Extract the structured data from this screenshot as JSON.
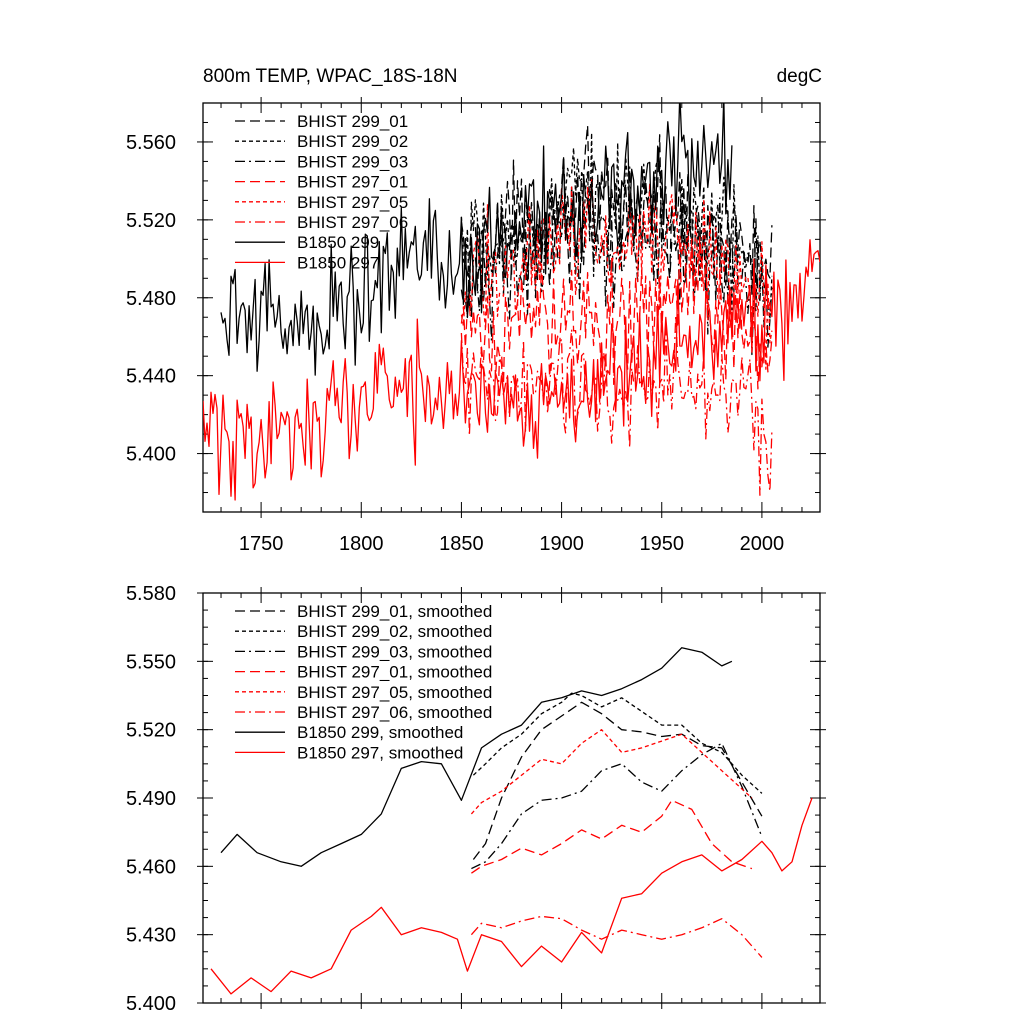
{
  "colors": {
    "black": "#000000",
    "red": "#ff0000"
  },
  "styles": {
    "solid": "",
    "dash": "10,5",
    "dot": "4,3",
    "dashdot": "10,4,2,4"
  },
  "top": {
    "title_left": "800m TEMP, WPAC_18S-18N",
    "title_right": "degC",
    "x_ticks": [
      "1750",
      "1800",
      "1850",
      "1900",
      "1950",
      "2000"
    ],
    "y_ticks": [
      "5.400",
      "5.440",
      "5.480",
      "5.520",
      "5.560"
    ]
  },
  "bottom": {
    "y_ticks": [
      "5.400",
      "5.430",
      "5.460",
      "5.490",
      "5.520",
      "5.550",
      "5.580"
    ]
  },
  "chart_data": [
    {
      "type": "line",
      "title": "800m TEMP, WPAC_18S-18N",
      "units": "degC",
      "xlim": [
        1721,
        2029
      ],
      "ylim": [
        5.37,
        5.58
      ],
      "x_tick_values": [
        1750,
        1800,
        1850,
        1900,
        1950,
        2000
      ],
      "y_tick_values": [
        5.4,
        5.44,
        5.48,
        5.52,
        5.56
      ],
      "noisy": true,
      "legend_position": "top-left",
      "series": [
        {
          "name": "BHIST 299_01",
          "color": "black",
          "style": "dash",
          "x": [
            1850,
            1870,
            1890,
            1910,
            1930,
            1950,
            1970,
            1990,
            2005
          ],
          "y": [
            5.5,
            5.512,
            5.522,
            5.53,
            5.526,
            5.522,
            5.515,
            5.505,
            5.495
          ]
        },
        {
          "name": "BHIST 299_02",
          "color": "black",
          "style": "dot",
          "x": [
            1850,
            1870,
            1890,
            1910,
            1930,
            1950,
            1970,
            1990,
            2005
          ],
          "y": [
            5.495,
            5.508,
            5.52,
            5.532,
            5.53,
            5.524,
            5.518,
            5.5,
            5.49
          ]
        },
        {
          "name": "BHIST 299_03",
          "color": "black",
          "style": "dashdot",
          "x": [
            1850,
            1870,
            1890,
            1910,
            1930,
            1950,
            1970,
            1990,
            2005
          ],
          "y": [
            5.48,
            5.49,
            5.5,
            5.512,
            5.508,
            5.51,
            5.505,
            5.49,
            5.475
          ]
        },
        {
          "name": "BHIST 297_01",
          "color": "red",
          "style": "dash",
          "x": [
            1850,
            1870,
            1890,
            1910,
            1930,
            1950,
            1970,
            1990,
            2005
          ],
          "y": [
            5.455,
            5.462,
            5.47,
            5.472,
            5.47,
            5.478,
            5.482,
            5.465,
            5.44
          ]
        },
        {
          "name": "BHIST 297_05",
          "color": "red",
          "style": "dot",
          "x": [
            1850,
            1870,
            1890,
            1910,
            1930,
            1950,
            1970,
            1990,
            2005
          ],
          "y": [
            5.482,
            5.495,
            5.505,
            5.512,
            5.508,
            5.51,
            5.508,
            5.49,
            5.465
          ]
        },
        {
          "name": "BHIST 297_06",
          "color": "red",
          "style": "dashdot",
          "x": [
            1850,
            1870,
            1890,
            1910,
            1930,
            1950,
            1970,
            1990,
            2005
          ],
          "y": [
            5.435,
            5.432,
            5.436,
            5.432,
            5.43,
            5.432,
            5.436,
            5.43,
            5.405
          ]
        },
        {
          "name": "B1850 299",
          "color": "black",
          "style": "solid",
          "x": [
            1730,
            1750,
            1770,
            1790,
            1810,
            1830,
            1850,
            1870,
            1890,
            1910,
            1930,
            1950,
            1965,
            1985
          ],
          "y": [
            5.468,
            5.472,
            5.465,
            5.475,
            5.49,
            5.505,
            5.5,
            5.51,
            5.525,
            5.53,
            5.538,
            5.545,
            5.55,
            5.548
          ]
        },
        {
          "name": "B1850 297",
          "color": "red",
          "style": "solid",
          "x": [
            1721,
            1740,
            1760,
            1780,
            1800,
            1820,
            1840,
            1860,
            1880,
            1900,
            1920,
            1940,
            1960,
            1980,
            2000,
            2010,
            2029
          ],
          "y": [
            5.415,
            5.405,
            5.413,
            5.418,
            5.428,
            5.436,
            5.43,
            5.43,
            5.428,
            5.43,
            5.44,
            5.45,
            5.462,
            5.458,
            5.47,
            5.48,
            5.5
          ]
        }
      ]
    },
    {
      "type": "line",
      "xlim": [
        1721,
        2029
      ],
      "ylim": [
        5.4,
        5.58
      ],
      "x_tick_values": [
        1750,
        1800,
        1850,
        1900,
        1950,
        2000
      ],
      "y_tick_values": [
        5.4,
        5.43,
        5.46,
        5.49,
        5.52,
        5.55,
        5.58
      ],
      "noisy": false,
      "legend_position": "top-left",
      "series": [
        {
          "name": "BHIST 299_01, smoothed",
          "color": "black",
          "style": "dash",
          "x": [
            1856,
            1862,
            1870,
            1880,
            1890,
            1900,
            1910,
            1920,
            1930,
            1940,
            1950,
            1960,
            1970,
            1980,
            1990,
            2000
          ],
          "y": [
            5.463,
            5.47,
            5.49,
            5.508,
            5.52,
            5.526,
            5.532,
            5.527,
            5.52,
            5.519,
            5.517,
            5.518,
            5.513,
            5.512,
            5.497,
            5.482
          ]
        },
        {
          "name": "BHIST 299_02, smoothed",
          "color": "black",
          "style": "dot",
          "x": [
            1856,
            1862,
            1870,
            1880,
            1890,
            1900,
            1905,
            1910,
            1920,
            1930,
            1940,
            1950,
            1960,
            1970,
            1980,
            1990,
            2000
          ],
          "y": [
            5.5,
            5.505,
            5.512,
            5.518,
            5.527,
            5.532,
            5.536,
            5.535,
            5.53,
            5.534,
            5.528,
            5.522,
            5.522,
            5.514,
            5.51,
            5.5,
            5.492
          ]
        },
        {
          "name": "BHIST 299_03, smoothed",
          "color": "black",
          "style": "dashdot",
          "x": [
            1855,
            1862,
            1870,
            1880,
            1890,
            1900,
            1910,
            1920,
            1930,
            1940,
            1950,
            1960,
            1970,
            1980,
            1990,
            2000
          ],
          "y": [
            5.459,
            5.462,
            5.47,
            5.483,
            5.489,
            5.49,
            5.493,
            5.502,
            5.505,
            5.497,
            5.493,
            5.502,
            5.509,
            5.514,
            5.495,
            5.473
          ]
        },
        {
          "name": "BHIST 297_01, smoothed",
          "color": "red",
          "style": "dash",
          "x": [
            1855,
            1860,
            1870,
            1880,
            1890,
            1900,
            1910,
            1920,
            1930,
            1940,
            1950,
            1955,
            1965,
            1975,
            1985,
            1995
          ],
          "y": [
            5.457,
            5.46,
            5.463,
            5.468,
            5.465,
            5.47,
            5.476,
            5.472,
            5.478,
            5.475,
            5.482,
            5.489,
            5.485,
            5.47,
            5.462,
            5.459
          ]
        },
        {
          "name": "BHIST 297_05, smoothed",
          "color": "red",
          "style": "dot",
          "x": [
            1855,
            1860,
            1870,
            1880,
            1890,
            1900,
            1910,
            1920,
            1930,
            1940,
            1950,
            1960,
            1970,
            1980,
            1995
          ],
          "y": [
            5.483,
            5.488,
            5.493,
            5.5,
            5.507,
            5.505,
            5.514,
            5.52,
            5.51,
            5.512,
            5.515,
            5.518,
            5.51,
            5.502,
            5.49
          ]
        },
        {
          "name": "BHIST 297_06, smoothed",
          "color": "red",
          "style": "dashdot",
          "x": [
            1855,
            1860,
            1870,
            1880,
            1890,
            1900,
            1910,
            1920,
            1930,
            1940,
            1950,
            1960,
            1970,
            1980,
            1990,
            2000
          ],
          "y": [
            5.43,
            5.435,
            5.433,
            5.436,
            5.438,
            5.437,
            5.432,
            5.428,
            5.432,
            5.43,
            5.428,
            5.43,
            5.433,
            5.437,
            5.43,
            5.42
          ]
        },
        {
          "name": "B1850 299, smoothed",
          "color": "black",
          "style": "solid",
          "x": [
            1730,
            1738,
            1748,
            1760,
            1770,
            1780,
            1790,
            1800,
            1810,
            1820,
            1830,
            1840,
            1850,
            1860,
            1870,
            1880,
            1890,
            1900,
            1910,
            1920,
            1930,
            1940,
            1950,
            1960,
            1970,
            1980,
            1985
          ],
          "y": [
            5.466,
            5.474,
            5.466,
            5.462,
            5.46,
            5.466,
            5.47,
            5.474,
            5.483,
            5.503,
            5.506,
            5.505,
            5.489,
            5.512,
            5.518,
            5.522,
            5.532,
            5.534,
            5.537,
            5.535,
            5.538,
            5.542,
            5.547,
            5.556,
            5.554,
            5.548,
            5.55
          ]
        },
        {
          "name": "B1850 297, smoothed",
          "color": "red",
          "style": "solid",
          "x": [
            1725,
            1735,
            1745,
            1755,
            1765,
            1775,
            1785,
            1795,
            1805,
            1810,
            1820,
            1830,
            1840,
            1848,
            1853,
            1860,
            1870,
            1880,
            1890,
            1900,
            1910,
            1920,
            1930,
            1940,
            1950,
            1960,
            1970,
            1980,
            1990,
            2000,
            2005,
            2010,
            2015,
            2020,
            2025
          ],
          "y": [
            5.415,
            5.404,
            5.411,
            5.405,
            5.414,
            5.411,
            5.415,
            5.432,
            5.438,
            5.442,
            5.43,
            5.433,
            5.431,
            5.428,
            5.414,
            5.43,
            5.427,
            5.416,
            5.425,
            5.418,
            5.431,
            5.422,
            5.446,
            5.448,
            5.457,
            5.462,
            5.465,
            5.458,
            5.463,
            5.471,
            5.466,
            5.458,
            5.462,
            5.478,
            5.49
          ]
        }
      ]
    }
  ]
}
